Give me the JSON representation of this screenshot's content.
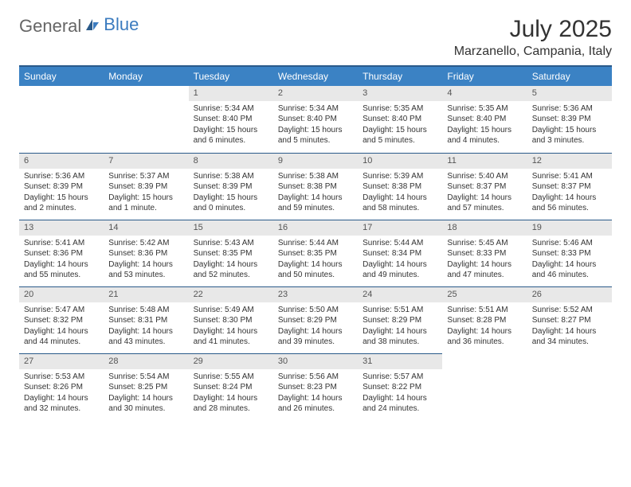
{
  "brand": {
    "part1": "General",
    "part2": "Blue"
  },
  "title": "July 2025",
  "location": "Marzanello, Campania, Italy",
  "colors": {
    "header_bg": "#3b82c4",
    "header_border": "#2a5a8a",
    "daynum_bg": "#e8e8e8",
    "brand_blue": "#3b7bbf"
  },
  "weekdays": [
    "Sunday",
    "Monday",
    "Tuesday",
    "Wednesday",
    "Thursday",
    "Friday",
    "Saturday"
  ],
  "weeks": [
    [
      {
        "empty": true
      },
      {
        "empty": true
      },
      {
        "n": "1",
        "sr": "Sunrise: 5:34 AM",
        "ss": "Sunset: 8:40 PM",
        "dl1": "Daylight: 15 hours",
        "dl2": "and 6 minutes."
      },
      {
        "n": "2",
        "sr": "Sunrise: 5:34 AM",
        "ss": "Sunset: 8:40 PM",
        "dl1": "Daylight: 15 hours",
        "dl2": "and 5 minutes."
      },
      {
        "n": "3",
        "sr": "Sunrise: 5:35 AM",
        "ss": "Sunset: 8:40 PM",
        "dl1": "Daylight: 15 hours",
        "dl2": "and 5 minutes."
      },
      {
        "n": "4",
        "sr": "Sunrise: 5:35 AM",
        "ss": "Sunset: 8:40 PM",
        "dl1": "Daylight: 15 hours",
        "dl2": "and 4 minutes."
      },
      {
        "n": "5",
        "sr": "Sunrise: 5:36 AM",
        "ss": "Sunset: 8:39 PM",
        "dl1": "Daylight: 15 hours",
        "dl2": "and 3 minutes."
      }
    ],
    [
      {
        "n": "6",
        "sr": "Sunrise: 5:36 AM",
        "ss": "Sunset: 8:39 PM",
        "dl1": "Daylight: 15 hours",
        "dl2": "and 2 minutes."
      },
      {
        "n": "7",
        "sr": "Sunrise: 5:37 AM",
        "ss": "Sunset: 8:39 PM",
        "dl1": "Daylight: 15 hours",
        "dl2": "and 1 minute."
      },
      {
        "n": "8",
        "sr": "Sunrise: 5:38 AM",
        "ss": "Sunset: 8:39 PM",
        "dl1": "Daylight: 15 hours",
        "dl2": "and 0 minutes."
      },
      {
        "n": "9",
        "sr": "Sunrise: 5:38 AM",
        "ss": "Sunset: 8:38 PM",
        "dl1": "Daylight: 14 hours",
        "dl2": "and 59 minutes."
      },
      {
        "n": "10",
        "sr": "Sunrise: 5:39 AM",
        "ss": "Sunset: 8:38 PM",
        "dl1": "Daylight: 14 hours",
        "dl2": "and 58 minutes."
      },
      {
        "n": "11",
        "sr": "Sunrise: 5:40 AM",
        "ss": "Sunset: 8:37 PM",
        "dl1": "Daylight: 14 hours",
        "dl2": "and 57 minutes."
      },
      {
        "n": "12",
        "sr": "Sunrise: 5:41 AM",
        "ss": "Sunset: 8:37 PM",
        "dl1": "Daylight: 14 hours",
        "dl2": "and 56 minutes."
      }
    ],
    [
      {
        "n": "13",
        "sr": "Sunrise: 5:41 AM",
        "ss": "Sunset: 8:36 PM",
        "dl1": "Daylight: 14 hours",
        "dl2": "and 55 minutes."
      },
      {
        "n": "14",
        "sr": "Sunrise: 5:42 AM",
        "ss": "Sunset: 8:36 PM",
        "dl1": "Daylight: 14 hours",
        "dl2": "and 53 minutes."
      },
      {
        "n": "15",
        "sr": "Sunrise: 5:43 AM",
        "ss": "Sunset: 8:35 PM",
        "dl1": "Daylight: 14 hours",
        "dl2": "and 52 minutes."
      },
      {
        "n": "16",
        "sr": "Sunrise: 5:44 AM",
        "ss": "Sunset: 8:35 PM",
        "dl1": "Daylight: 14 hours",
        "dl2": "and 50 minutes."
      },
      {
        "n": "17",
        "sr": "Sunrise: 5:44 AM",
        "ss": "Sunset: 8:34 PM",
        "dl1": "Daylight: 14 hours",
        "dl2": "and 49 minutes."
      },
      {
        "n": "18",
        "sr": "Sunrise: 5:45 AM",
        "ss": "Sunset: 8:33 PM",
        "dl1": "Daylight: 14 hours",
        "dl2": "and 47 minutes."
      },
      {
        "n": "19",
        "sr": "Sunrise: 5:46 AM",
        "ss": "Sunset: 8:33 PM",
        "dl1": "Daylight: 14 hours",
        "dl2": "and 46 minutes."
      }
    ],
    [
      {
        "n": "20",
        "sr": "Sunrise: 5:47 AM",
        "ss": "Sunset: 8:32 PM",
        "dl1": "Daylight: 14 hours",
        "dl2": "and 44 minutes."
      },
      {
        "n": "21",
        "sr": "Sunrise: 5:48 AM",
        "ss": "Sunset: 8:31 PM",
        "dl1": "Daylight: 14 hours",
        "dl2": "and 43 minutes."
      },
      {
        "n": "22",
        "sr": "Sunrise: 5:49 AM",
        "ss": "Sunset: 8:30 PM",
        "dl1": "Daylight: 14 hours",
        "dl2": "and 41 minutes."
      },
      {
        "n": "23",
        "sr": "Sunrise: 5:50 AM",
        "ss": "Sunset: 8:29 PM",
        "dl1": "Daylight: 14 hours",
        "dl2": "and 39 minutes."
      },
      {
        "n": "24",
        "sr": "Sunrise: 5:51 AM",
        "ss": "Sunset: 8:29 PM",
        "dl1": "Daylight: 14 hours",
        "dl2": "and 38 minutes."
      },
      {
        "n": "25",
        "sr": "Sunrise: 5:51 AM",
        "ss": "Sunset: 8:28 PM",
        "dl1": "Daylight: 14 hours",
        "dl2": "and 36 minutes."
      },
      {
        "n": "26",
        "sr": "Sunrise: 5:52 AM",
        "ss": "Sunset: 8:27 PM",
        "dl1": "Daylight: 14 hours",
        "dl2": "and 34 minutes."
      }
    ],
    [
      {
        "n": "27",
        "sr": "Sunrise: 5:53 AM",
        "ss": "Sunset: 8:26 PM",
        "dl1": "Daylight: 14 hours",
        "dl2": "and 32 minutes."
      },
      {
        "n": "28",
        "sr": "Sunrise: 5:54 AM",
        "ss": "Sunset: 8:25 PM",
        "dl1": "Daylight: 14 hours",
        "dl2": "and 30 minutes."
      },
      {
        "n": "29",
        "sr": "Sunrise: 5:55 AM",
        "ss": "Sunset: 8:24 PM",
        "dl1": "Daylight: 14 hours",
        "dl2": "and 28 minutes."
      },
      {
        "n": "30",
        "sr": "Sunrise: 5:56 AM",
        "ss": "Sunset: 8:23 PM",
        "dl1": "Daylight: 14 hours",
        "dl2": "and 26 minutes."
      },
      {
        "n": "31",
        "sr": "Sunrise: 5:57 AM",
        "ss": "Sunset: 8:22 PM",
        "dl1": "Daylight: 14 hours",
        "dl2": "and 24 minutes."
      },
      {
        "empty": true
      },
      {
        "empty": true
      }
    ]
  ]
}
